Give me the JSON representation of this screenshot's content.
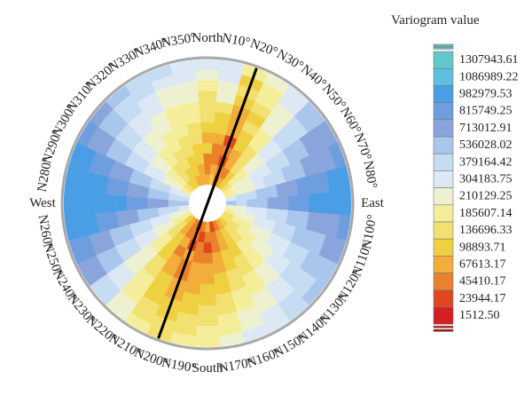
{
  "chart_data": {
    "type": "heatmap",
    "subtype": "polar-rose-variogram-map",
    "legend_title": "Variogram value",
    "direction_labels": [
      "North",
      "N10°",
      "N20°",
      "N30°",
      "N40°",
      "N50°",
      "N60°",
      "N70°",
      "N80°",
      "East",
      "N100°",
      "N110°",
      "N120°",
      "N130°",
      "N140°",
      "N150°",
      "N160°",
      "N170°",
      "South",
      "N190°",
      "N200°",
      "N210°",
      "N220°",
      "N230°",
      "N240°",
      "N250°",
      "N260°",
      "West",
      "N280°",
      "N290°",
      "N300°",
      "N310°",
      "N320°",
      "N330°",
      "N340°",
      "N350°"
    ],
    "legend_values": [
      "1307943.61",
      "1086989.22",
      "982979.53",
      "815749.25",
      "713012.91",
      "536028.02",
      "379164.42",
      "304183.75",
      "210129.25",
      "185607.14",
      "136696.33",
      "98893.71",
      "67613.17",
      "45410.17",
      "23944.17",
      "1512.50"
    ],
    "legend_colors": [
      "#62c8cc",
      "#5cbfe0",
      "#4a9ee6",
      "#6e9ee0",
      "#8aa5dc",
      "#a9c6ec",
      "#c6dcf2",
      "#dce9f5",
      "#eef1d0",
      "#f4ee9a",
      "#f2e070",
      "#eed040",
      "#f3ad3a",
      "#e9822a",
      "#e0471e",
      "#d42020"
    ],
    "direction_axis_angle_deg": 20,
    "directions_deg": [
      0,
      10,
      20,
      30,
      40,
      50,
      60,
      70,
      80,
      90,
      100,
      110,
      120,
      130,
      140,
      150,
      160,
      170,
      180,
      190,
      200,
      210,
      220,
      230,
      240,
      250,
      260,
      270,
      280,
      290,
      300,
      310,
      320,
      330,
      340,
      350
    ],
    "ring_count": 12,
    "sector_count": 36,
    "value_class_matrix": [
      [
        3,
        2,
        2,
        4,
        3,
        4,
        5,
        5,
        5,
        6,
        7,
        8
      ],
      [
        4,
        3,
        2,
        2,
        3,
        4,
        4,
        5,
        7,
        7,
        8,
        8
      ],
      [
        1,
        2,
        1,
        2,
        1,
        3,
        3,
        3,
        4,
        5,
        4,
        6
      ],
      [
        3,
        2,
        3,
        3,
        4,
        4,
        5,
        4,
        5,
        6,
        6,
        7
      ],
      [
        4,
        4,
        5,
        5,
        5,
        6,
        6,
        7,
        7,
        7,
        8,
        8
      ],
      [
        5,
        6,
        6,
        7,
        7,
        8,
        8,
        9,
        9,
        9,
        10,
        10
      ],
      [
        6,
        7,
        7,
        8,
        8,
        9,
        9,
        10,
        10,
        11,
        11,
        11
      ],
      [
        6,
        7,
        7,
        8,
        9,
        9,
        10,
        10,
        11,
        11,
        11,
        12
      ],
      [
        8,
        9,
        9,
        10,
        10,
        11,
        11,
        12,
        12,
        12,
        13,
        13
      ],
      [
        10,
        9,
        10,
        10,
        11,
        11,
        12,
        12,
        13,
        13,
        13,
        13
      ],
      [
        7,
        7,
        8,
        8,
        9,
        9,
        10,
        10,
        11,
        11,
        11,
        12
      ],
      [
        6,
        7,
        7,
        8,
        8,
        9,
        9,
        10,
        10,
        10,
        11,
        11
      ],
      [
        5,
        6,
        6,
        7,
        7,
        8,
        8,
        9,
        9,
        10,
        10,
        10
      ],
      [
        5,
        5,
        6,
        6,
        7,
        7,
        8,
        8,
        9,
        9,
        9,
        10
      ],
      [
        4,
        5,
        5,
        6,
        6,
        6,
        7,
        7,
        8,
        8,
        9,
        9
      ],
      [
        3,
        4,
        4,
        4,
        5,
        5,
        6,
        6,
        7,
        7,
        8,
        8
      ],
      [
        2,
        3,
        3,
        4,
        4,
        5,
        5,
        6,
        6,
        7,
        7,
        8
      ],
      [
        1,
        2,
        2,
        3,
        3,
        4,
        4,
        5,
        5,
        6,
        6,
        7
      ],
      [
        3,
        2,
        1,
        2,
        3,
        3,
        4,
        4,
        5,
        5,
        6,
        6
      ],
      [
        2,
        1,
        2,
        2,
        3,
        3,
        3,
        4,
        4,
        5,
        5,
        6
      ],
      [
        1,
        2,
        1,
        3,
        2,
        2,
        3,
        3,
        4,
        4,
        5,
        5
      ],
      [
        2,
        2,
        3,
        2,
        3,
        3,
        4,
        4,
        4,
        5,
        5,
        6
      ],
      [
        3,
        3,
        4,
        4,
        4,
        5,
        5,
        6,
        6,
        6,
        7,
        7
      ],
      [
        4,
        5,
        5,
        6,
        6,
        7,
        7,
        7,
        8,
        8,
        9,
        9
      ],
      [
        6,
        6,
        7,
        7,
        8,
        8,
        9,
        9,
        10,
        10,
        11,
        11
      ],
      [
        7,
        7,
        8,
        8,
        9,
        9,
        10,
        10,
        11,
        11,
        12,
        12
      ],
      [
        8,
        9,
        9,
        10,
        10,
        11,
        11,
        12,
        12,
        13,
        13,
        13
      ],
      [
        10,
        10,
        11,
        11,
        12,
        12,
        13,
        13,
        13,
        13,
        13,
        13
      ],
      [
        9,
        9,
        10,
        10,
        11,
        11,
        12,
        12,
        13,
        13,
        13,
        13
      ],
      [
        8,
        8,
        9,
        9,
        10,
        10,
        11,
        11,
        12,
        12,
        13,
        13
      ],
      [
        6,
        7,
        7,
        8,
        8,
        9,
        9,
        10,
        10,
        11,
        11,
        12
      ],
      [
        5,
        6,
        6,
        7,
        7,
        8,
        8,
        9,
        9,
        10,
        10,
        11
      ],
      [
        4,
        5,
        5,
        6,
        6,
        7,
        7,
        8,
        8,
        9,
        9,
        10
      ],
      [
        4,
        4,
        5,
        5,
        6,
        6,
        7,
        7,
        8,
        8,
        9,
        9
      ],
      [
        3,
        4,
        4,
        5,
        5,
        6,
        6,
        6,
        7,
        7,
        8,
        9
      ],
      [
        3,
        3,
        4,
        4,
        5,
        5,
        6,
        6,
        7,
        7,
        8,
        8
      ]
    ]
  }
}
